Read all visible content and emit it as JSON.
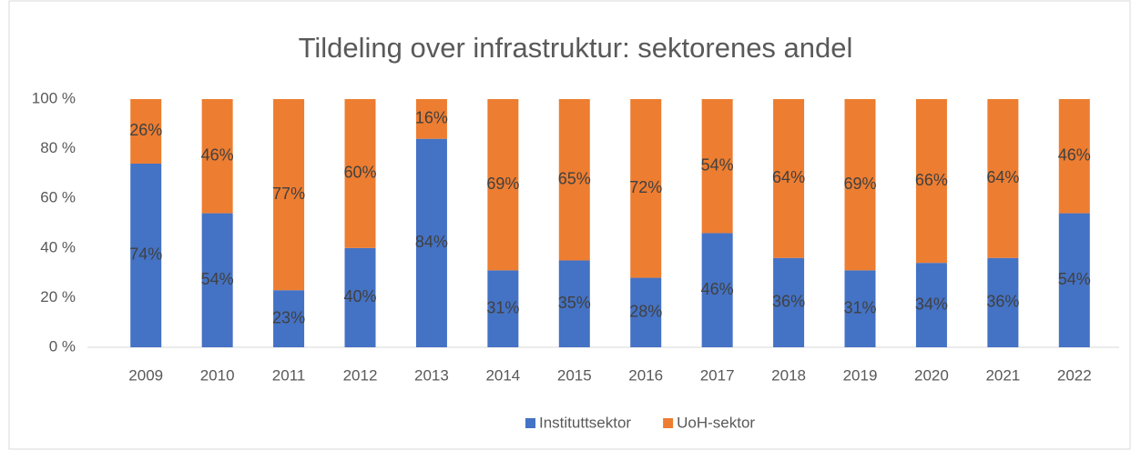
{
  "chart_data": {
    "type": "stacked_bar",
    "title": "Tildeling over infrastruktur: sektorenes andel",
    "categories": [
      "2009",
      "2010",
      "2011",
      "2012",
      "2013",
      "2014",
      "2015",
      "2016",
      "2017",
      "2018",
      "2019",
      "2020",
      "2021",
      "2022"
    ],
    "series": [
      {
        "name": "Instituttsektor",
        "color": "#4472c4",
        "values": [
          74,
          54,
          23,
          40,
          84,
          31,
          35,
          28,
          46,
          36,
          31,
          34,
          36,
          54
        ],
        "value_labels": [
          "74%",
          "54%",
          "23%",
          "40%",
          "84%",
          "31%",
          "35%",
          "28%",
          "46%",
          "36%",
          "31%",
          "34%",
          "36%",
          "54%"
        ]
      },
      {
        "name": "UoH-sektor",
        "color": "#ed7d31",
        "values": [
          26,
          46,
          77,
          60,
          16,
          69,
          65,
          72,
          54,
          64,
          69,
          66,
          64,
          46
        ],
        "value_labels": [
          "26%",
          "46%",
          "77%",
          "60%",
          "16%",
          "69%",
          "65%",
          "72%",
          "54%",
          "64%",
          "69%",
          "66%",
          "64%",
          "46%"
        ]
      }
    ],
    "ylim": [
      0,
      100
    ],
    "yticks": [
      {
        "value": 0,
        "label": "0 %"
      },
      {
        "value": 20,
        "label": "20 %"
      },
      {
        "value": 40,
        "label": "40 %"
      },
      {
        "value": 60,
        "label": "60 %"
      },
      {
        "value": 80,
        "label": "80 %"
      },
      {
        "value": 100,
        "label": "100 %"
      }
    ],
    "legend": "bottom"
  }
}
